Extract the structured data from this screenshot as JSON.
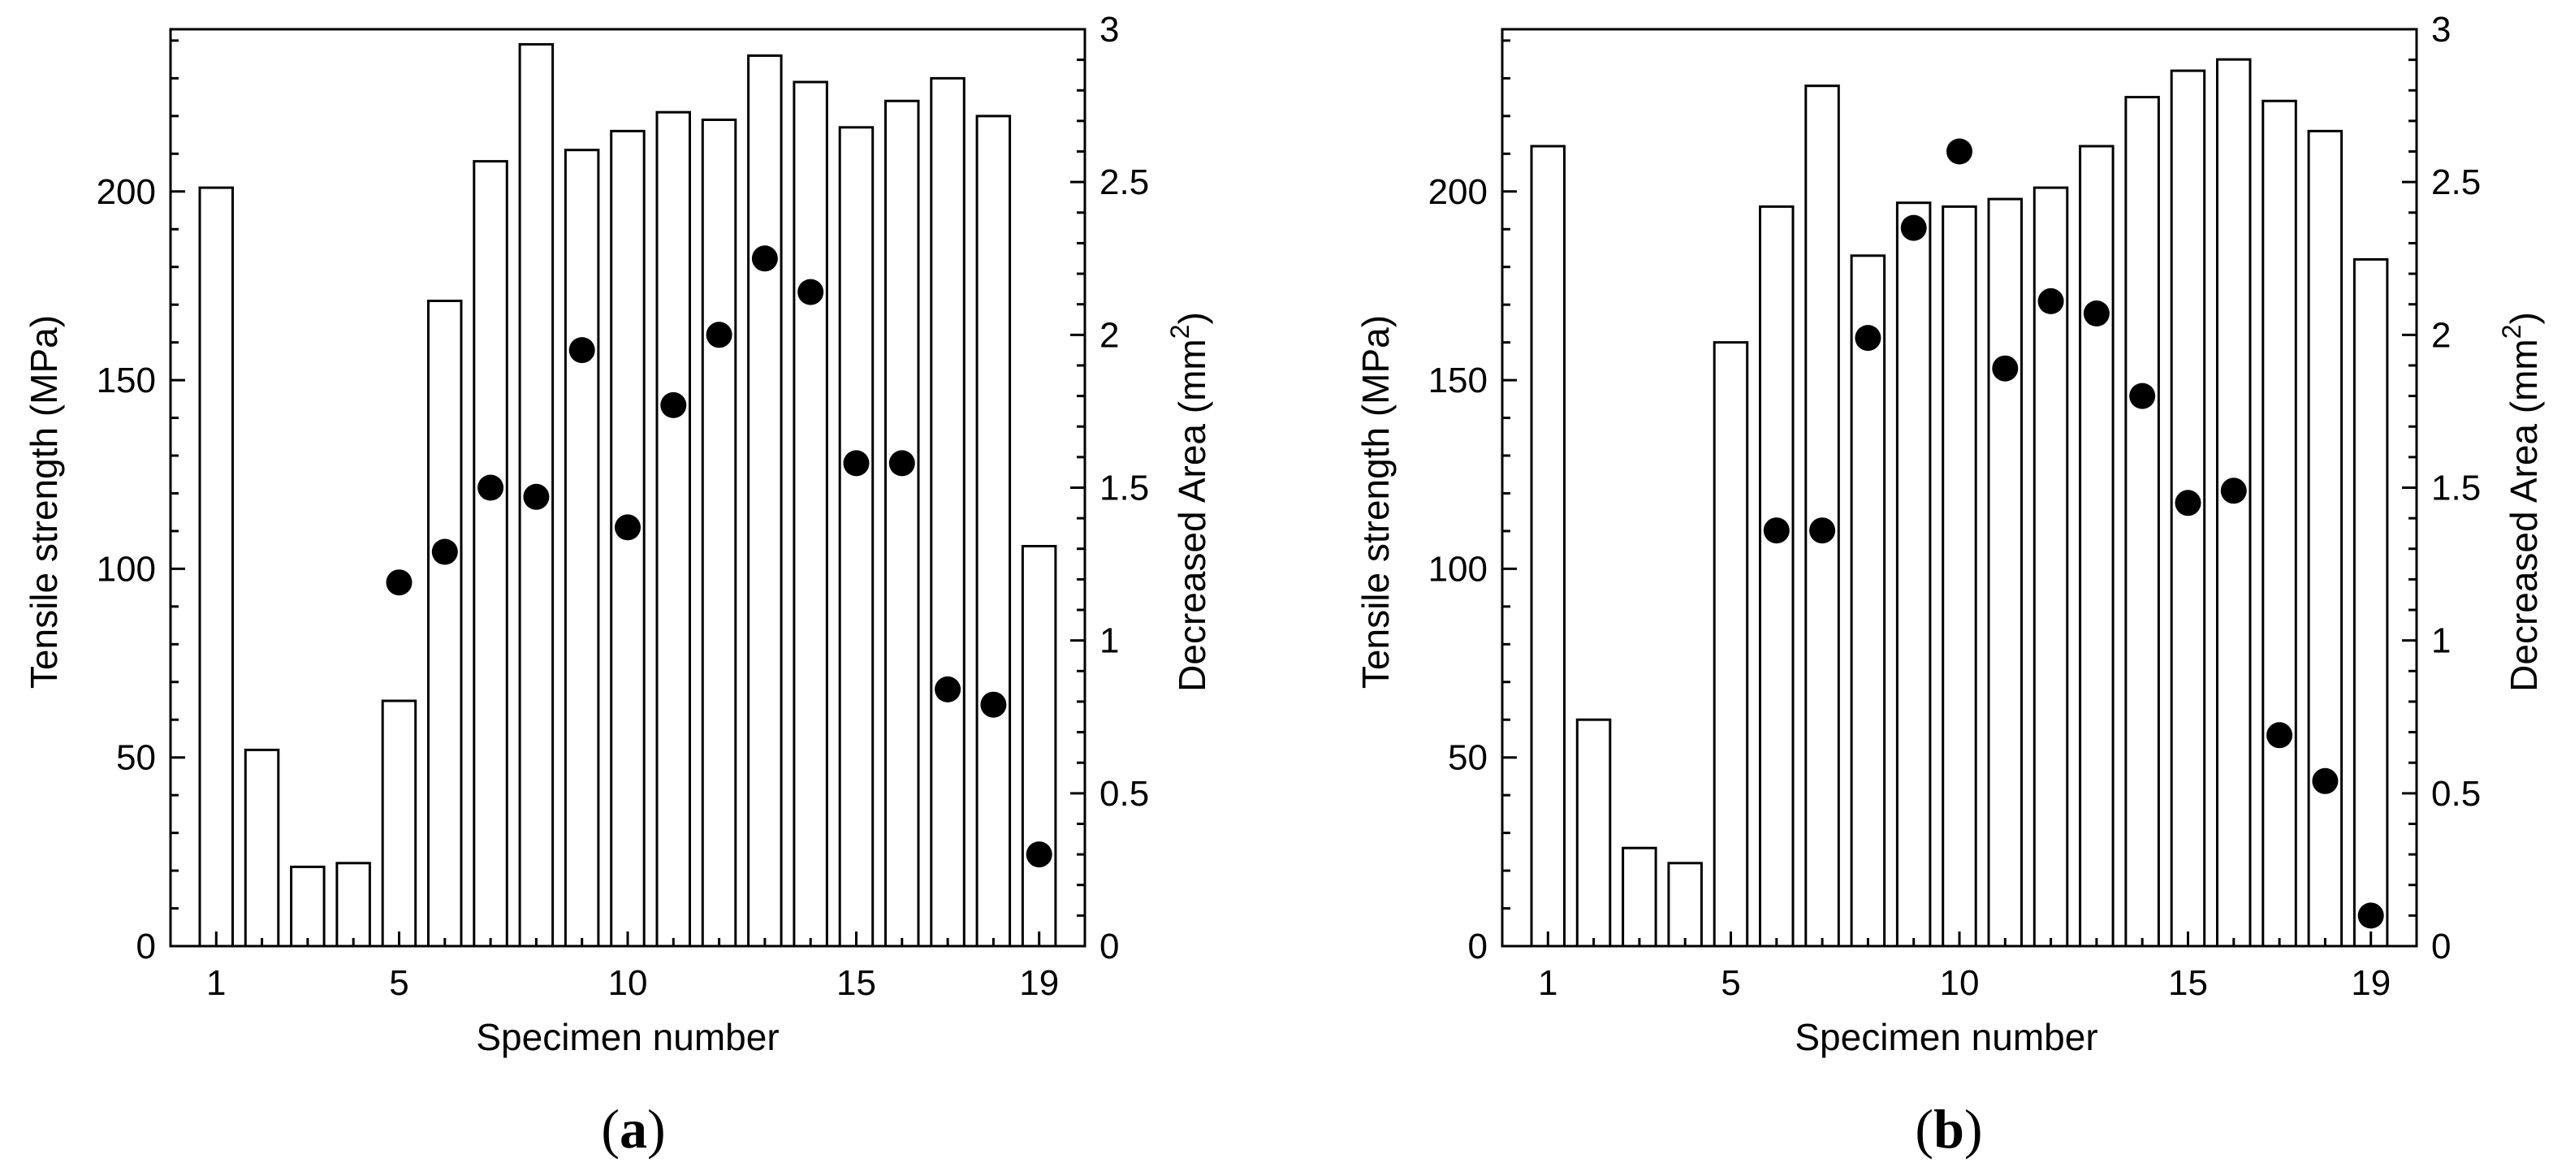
{
  "figure": {
    "panels": [
      {
        "label_open": "(",
        "label_letter": "a",
        "label_close": ")"
      },
      {
        "label_open": "(",
        "label_letter": "b",
        "label_close": ")"
      }
    ]
  },
  "colors": {
    "axis": "#000000",
    "bar_fill": "#ffffff",
    "bar_stroke": "#000000",
    "marker": "#000000"
  },
  "chart_data": [
    {
      "type": "bar",
      "panel": "a",
      "xlabel": "Specimen number",
      "ylabel": "Tensile strength (MPa)",
      "y2label_main": "Decreased Area (mm",
      "y2label_sup": "2",
      "y2label_end": ")",
      "xlim": [
        0,
        20
      ],
      "ylim": [
        0,
        243
      ],
      "y2lim": [
        0,
        3
      ],
      "x_ticks": [
        1,
        5,
        10,
        15,
        19
      ],
      "x_tick_labels": [
        "1",
        "5",
        "10",
        "15",
        "19"
      ],
      "y_ticks": [
        0,
        50,
        100,
        150,
        200
      ],
      "y_tick_labels": [
        "0",
        "50",
        "100",
        "150",
        "200"
      ],
      "y2_ticks": [
        0,
        0.5,
        1,
        1.5,
        2,
        2.5,
        3
      ],
      "y2_tick_labels": [
        "0",
        "0.5",
        "1",
        "1.5",
        "2",
        "2.5",
        "3"
      ],
      "categories": [
        1,
        2,
        3,
        4,
        5,
        6,
        7,
        8,
        9,
        10,
        11,
        12,
        13,
        14,
        15,
        16,
        17,
        18,
        19
      ],
      "series": [
        {
          "name": "Tensile strength",
          "axis": "left",
          "kind": "bar",
          "values": [
            201,
            52,
            21,
            22,
            65,
            171,
            208,
            239,
            211,
            216,
            221,
            219,
            236,
            229,
            217,
            224,
            230,
            220,
            106
          ]
        },
        {
          "name": "Decreased Area",
          "axis": "right",
          "kind": "scatter",
          "x": [
            5,
            6,
            7,
            8,
            9,
            10,
            11,
            12,
            13,
            14,
            15,
            16,
            17,
            18,
            19
          ],
          "values": [
            1.19,
            1.29,
            1.5,
            1.47,
            1.95,
            1.37,
            1.77,
            2.0,
            2.25,
            2.14,
            1.58,
            1.58,
            0.84,
            0.79,
            0.3
          ]
        }
      ]
    },
    {
      "type": "bar",
      "panel": "b",
      "xlabel": "Specimen number",
      "ylabel": "Tensile strength (MPa)",
      "y2label_main": "Decreased Area (mm",
      "y2label_sup": "2",
      "y2label_end": ")",
      "xlim": [
        0,
        20
      ],
      "ylim": [
        0,
        243
      ],
      "y2lim": [
        0,
        3
      ],
      "x_ticks": [
        1,
        5,
        10,
        15,
        19
      ],
      "x_tick_labels": [
        "1",
        "5",
        "10",
        "15",
        "19"
      ],
      "y_ticks": [
        0,
        50,
        100,
        150,
        200
      ],
      "y_tick_labels": [
        "0",
        "50",
        "100",
        "150",
        "200"
      ],
      "y2_ticks": [
        0,
        0.5,
        1,
        1.5,
        2,
        2.5,
        3
      ],
      "y2_tick_labels": [
        "0",
        "0.5",
        "1",
        "1.5",
        "2",
        "2.5",
        "3"
      ],
      "categories": [
        1,
        2,
        3,
        4,
        5,
        6,
        7,
        8,
        9,
        10,
        11,
        12,
        13,
        14,
        15,
        16,
        17,
        18,
        19
      ],
      "series": [
        {
          "name": "Tensile strength",
          "axis": "left",
          "kind": "bar",
          "values": [
            212,
            60,
            26,
            22,
            160,
            196,
            228,
            183,
            197,
            196,
            198,
            201,
            212,
            225,
            232,
            235,
            224,
            216,
            182
          ]
        },
        {
          "name": "Decreased Area",
          "axis": "right",
          "kind": "scatter",
          "x": [
            6,
            7,
            8,
            9,
            10,
            11,
            12,
            13,
            14,
            15,
            16,
            17,
            18,
            19
          ],
          "values": [
            1.36,
            1.36,
            1.99,
            2.35,
            2.6,
            1.89,
            2.11,
            2.07,
            1.8,
            1.45,
            1.49,
            0.69,
            0.54,
            0.1
          ]
        }
      ]
    }
  ]
}
